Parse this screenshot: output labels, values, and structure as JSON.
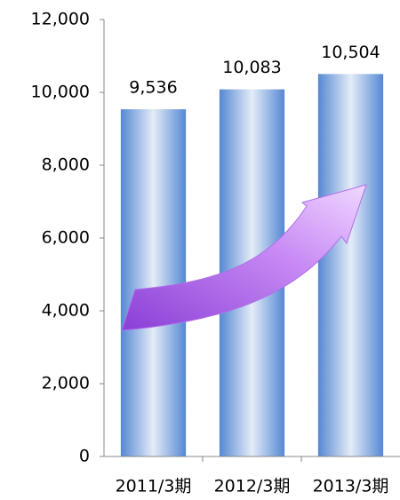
{
  "chart_data": {
    "type": "bar",
    "categories": [
      "2011/3期",
      "2012/3期",
      "2013/3期"
    ],
    "values": [
      9536,
      10083,
      10504
    ],
    "value_labels": [
      "9,536",
      "10,083",
      "10,504"
    ],
    "ylim": [
      0,
      12000
    ],
    "yticks": [
      0,
      {
        "value": 2000,
        "label": "2,000"
      },
      {
        "value": 4000,
        "label": "4,000"
      },
      {
        "value": 6000,
        "label": "6,000"
      },
      {
        "value": 8000,
        "label": "8,000"
      },
      {
        "value": 10000,
        "label": "10,000"
      },
      {
        "value": 12000,
        "label": "12,000"
      }
    ],
    "grid": false
  }
}
